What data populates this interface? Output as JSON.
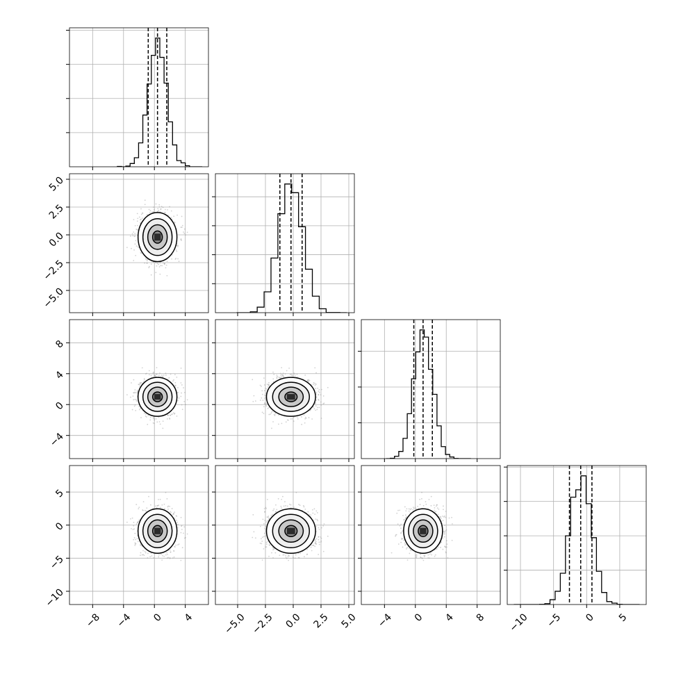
{
  "chart_data": {
    "type": "corner",
    "grid": true,
    "colors": {
      "line": "#000000",
      "grid": "#b0b0b0",
      "scatter": "#9a9a9a"
    },
    "params": [
      {
        "center": 0.4,
        "sigma": 1.2,
        "quantiles": [
          -0.8,
          0.4,
          1.6
        ],
        "range": [
          -11,
          7
        ],
        "ticks": [
          -8,
          -4,
          0,
          4
        ],
        "tick_labels": [
          "−8",
          "−4",
          "0",
          "4"
        ],
        "hist_bin_width": 0.55,
        "hist_range": [
          -4.8,
          6.2
        ]
      },
      {
        "center": -0.2,
        "sigma": 1.05,
        "quantiles": [
          -1.2,
          -0.2,
          0.8
        ],
        "range": [
          -7,
          5.5
        ],
        "ticks": [
          -5,
          -2.5,
          0,
          2.5,
          5
        ],
        "tick_labels": [
          "−5.0",
          "−2.5",
          "0.0",
          "2.5",
          "5.0"
        ],
        "hist_bin_width": 0.62,
        "hist_range": [
          -5.1,
          4.8
        ]
      },
      {
        "center": 1.0,
        "sigma": 1.2,
        "quantiles": [
          -0.2,
          1.0,
          2.2
        ],
        "range": [
          -7,
          11
        ],
        "ticks": [
          -4,
          0,
          4,
          8
        ],
        "tick_labels": [
          "−4",
          "0",
          "4",
          "8"
        ],
        "hist_bin_width": 0.55,
        "hist_range": [
          -3.8,
          7.2
        ]
      },
      {
        "center": -0.9,
        "sigma": 1.6,
        "quantiles": [
          -2.6,
          -0.9,
          0.8
        ],
        "range": [
          -12,
          9
        ],
        "ticks": [
          -10,
          -5,
          0,
          5
        ],
        "tick_labels": [
          "−10",
          "−5",
          "0",
          "5"
        ],
        "hist_bin_width": 0.78,
        "hist_range": [
          -11,
          8
        ]
      }
    ],
    "contour_levels_sigma": [
      0.5,
      1.0,
      1.5,
      2.0
    ],
    "contour_fill_grays": [
      "#ffffff",
      "#eeeeee",
      "#c8c8c8",
      "#888888",
      "#2b2b2b"
    ]
  }
}
